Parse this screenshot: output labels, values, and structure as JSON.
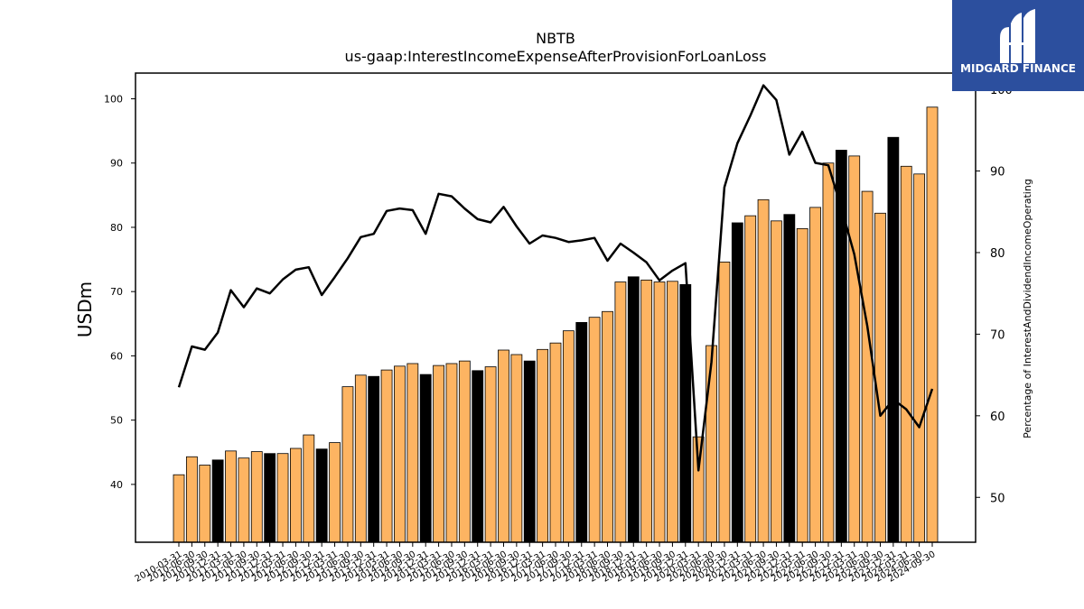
{
  "chart_data": {
    "type": "bar",
    "title": "NBTB",
    "subtitle": "us-gaap:InterestIncomeExpenseAfterProvisionForLoanLoss",
    "ylabel": "USDm",
    "y2label": "Percentage of InterestAndDividendIncomeOperating",
    "ylim": [
      31,
      104
    ],
    "y2lim": [
      44.5,
      102
    ],
    "yticks": [
      40,
      50,
      60,
      70,
      80,
      90,
      100
    ],
    "y2ticks": [
      50,
      60,
      70,
      80,
      90,
      100
    ],
    "grid": false,
    "colors": {
      "bar": "#fdb462",
      "bar_q4": "#000000",
      "line": "#000000"
    },
    "categories": [
      "2010-03-31",
      "2010-06-30",
      "2010-09-30",
      "2010-12-31",
      "2011-03-31",
      "2011-06-30",
      "2011-09-30",
      "2011-12-31",
      "2012-03-31",
      "2012-06-30",
      "2012-09-30",
      "2012-12-31",
      "2013-03-31",
      "2013-06-30",
      "2013-09-30",
      "2013-12-31",
      "2014-03-31",
      "2014-06-30",
      "2014-09-30",
      "2014-12-31",
      "2015-03-31",
      "2015-06-30",
      "2015-09-30",
      "2015-12-31",
      "2016-03-31",
      "2016-06-30",
      "2016-09-30",
      "2016-12-31",
      "2017-03-31",
      "2017-06-30",
      "2017-09-30",
      "2017-12-31",
      "2018-03-31",
      "2018-06-30",
      "2018-09-30",
      "2018-12-31",
      "2019-03-31",
      "2019-06-30",
      "2019-09-30",
      "2019-12-31",
      "2020-03-31",
      "2020-06-30",
      "2020-09-30",
      "2020-12-31",
      "2021-03-31",
      "2021-06-30",
      "2021-09-30",
      "2021-12-31",
      "2022-03-31",
      "2022-06-30",
      "2022-09-30",
      "2022-12-31",
      "2023-03-31",
      "2023-06-30",
      "2023-09-30",
      "2023-12-31",
      "2024-03-31",
      "2024-06-30",
      "2024-09-30"
    ],
    "series": [
      {
        "kind": "bar",
        "values": [
          41.5,
          44.3,
          43.0,
          43.8,
          45.2,
          44.1,
          45.1,
          44.8,
          44.8,
          45.6,
          47.7,
          45.5,
          46.5,
          55.2,
          57.0,
          56.8,
          57.8,
          58.4,
          58.8,
          57.1,
          58.5,
          58.8,
          59.2,
          57.7,
          58.3,
          60.9,
          60.2,
          59.2,
          61.0,
          62.0,
          63.9,
          65.2,
          66.0,
          66.9,
          71.5,
          72.3,
          71.8,
          71.5,
          71.6,
          71.1,
          47.4,
          61.6,
          74.6,
          80.7,
          81.8,
          84.3,
          81.0,
          82.0,
          79.8,
          83.1,
          90.0,
          92.0,
          91.1,
          85.6,
          82.2,
          94.0,
          89.5,
          88.3,
          98.7
        ]
      },
      {
        "kind": "line",
        "axis": "right",
        "values": [
          63.5,
          68.5,
          68.1,
          70.2,
          75.4,
          73.3,
          75.6,
          75.0,
          76.7,
          77.9,
          78.2,
          74.8,
          77.0,
          79.3,
          81.9,
          82.3,
          85.1,
          85.4,
          85.2,
          82.3,
          87.2,
          86.9,
          85.4,
          84.1,
          83.7,
          85.6,
          83.2,
          81.1,
          82.1,
          81.8,
          81.3,
          81.5,
          81.8,
          79.0,
          81.1,
          80.0,
          78.8,
          76.6,
          77.8,
          78.7,
          53.3,
          66.6,
          88.0,
          93.4,
          96.8,
          100.5,
          98.7,
          92.0,
          94.8,
          91.0,
          90.7,
          85.5,
          79.8,
          71.0,
          60.0,
          62.0,
          60.8,
          58.6,
          63.3
        ]
      }
    ]
  },
  "logo": {
    "text": "MIDGARD FINANCE",
    "bg_color": "#2c4f9e"
  }
}
